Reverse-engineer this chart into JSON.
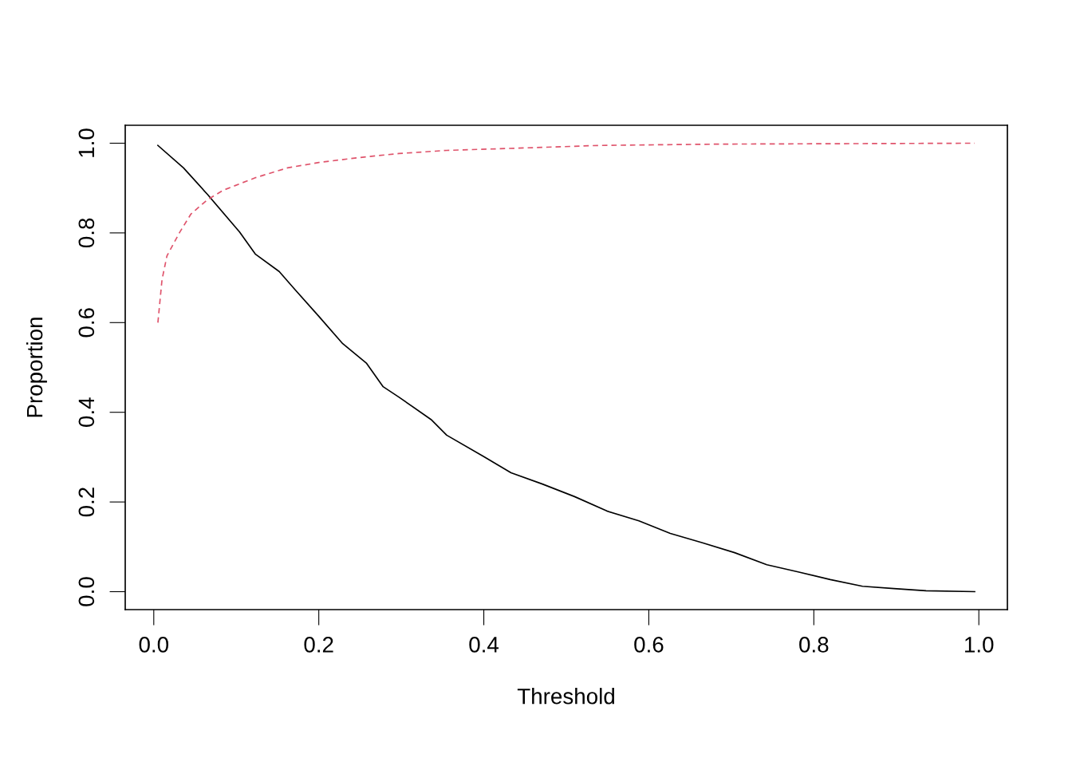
{
  "chart_data": {
    "type": "line",
    "xlabel": "Threshold",
    "ylabel": "Proportion",
    "xlim": [
      -0.0346,
      1.0346
    ],
    "ylim": [
      -0.04,
      1.04
    ],
    "xticks": [
      {
        "value": 0,
        "label": "0.0"
      },
      {
        "value": 0.2,
        "label": "0.2"
      },
      {
        "value": 0.4,
        "label": "0.4"
      },
      {
        "value": 0.6,
        "label": "0.6"
      },
      {
        "value": 0.8,
        "label": "0.8"
      },
      {
        "value": 1,
        "label": "1.0"
      }
    ],
    "yticks": [
      {
        "value": 0,
        "label": "0.0"
      },
      {
        "value": 0.2,
        "label": "0.2"
      },
      {
        "value": 0.4,
        "label": "0.4"
      },
      {
        "value": 0.6,
        "label": "0.6"
      },
      {
        "value": 0.8,
        "label": "0.8"
      },
      {
        "value": 1,
        "label": "1.0"
      }
    ],
    "grid": false,
    "legend": false,
    "marker": "none",
    "series": [
      {
        "color": "#000000",
        "line_style": "solid",
        "x": [
          0.005,
          0.036,
          0.065,
          0.104,
          0.123,
          0.152,
          0.171,
          0.2,
          0.229,
          0.258,
          0.278,
          0.297,
          0.336,
          0.355,
          0.4,
          0.433,
          0.471,
          0.51,
          0.549,
          0.588,
          0.626,
          0.665,
          0.704,
          0.743,
          0.781,
          0.82,
          0.859,
          0.897,
          0.936,
          0.995
        ],
        "values": [
          0.995,
          0.945,
          0.886,
          0.802,
          0.753,
          0.714,
          0.674,
          0.614,
          0.553,
          0.509,
          0.457,
          0.434,
          0.384,
          0.349,
          0.301,
          0.265,
          0.24,
          0.212,
          0.18,
          0.158,
          0.13,
          0.109,
          0.087,
          0.06,
          0.044,
          0.027,
          0.012,
          0.007,
          0.002,
          0.0
        ]
      },
      {
        "color": "#df536b",
        "line_style": "dashed",
        "x": [
          0.005,
          0.01,
          0.016,
          0.031,
          0.045,
          0.065,
          0.084,
          0.123,
          0.162,
          0.2,
          0.249,
          0.297,
          0.355,
          0.442,
          0.539,
          0.684,
          0.995
        ],
        "values": [
          0.6,
          0.696,
          0.749,
          0.8,
          0.842,
          0.874,
          0.895,
          0.923,
          0.945,
          0.957,
          0.968,
          0.977,
          0.984,
          0.989,
          0.995,
          0.998,
          1.0
        ]
      }
    ]
  }
}
